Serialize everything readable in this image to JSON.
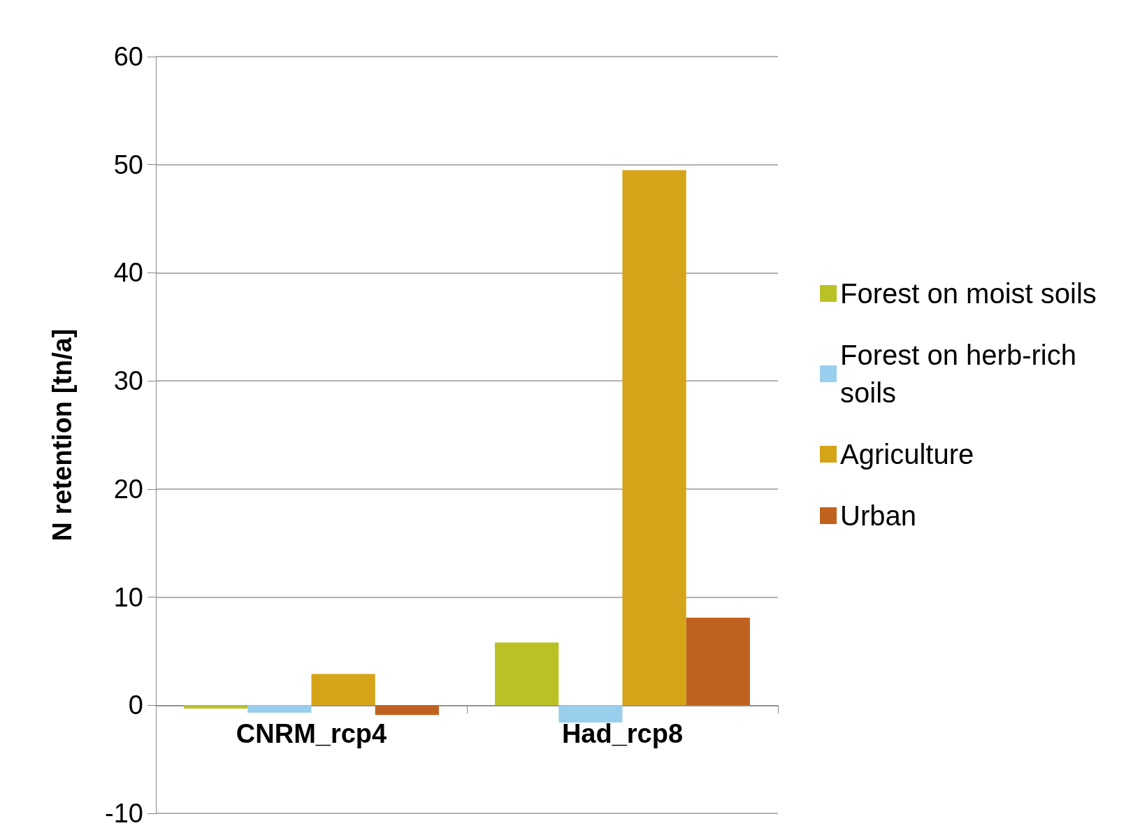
{
  "chart_data": {
    "type": "bar",
    "ylabel": "N retention [tn/a]",
    "categories": [
      "CNRM_rcp4",
      "Had_rcp8"
    ],
    "series": [
      {
        "name": "Forest on moist soils",
        "color": "#bac125",
        "values": [
          -0.3,
          5.8
        ]
      },
      {
        "name": "Forest on herb-rich soils",
        "color": "#99cfec",
        "values": [
          -0.7,
          -1.6
        ]
      },
      {
        "name": "Agriculture",
        "color": "#d5a419",
        "values": [
          2.9,
          49.5
        ]
      },
      {
        "name": "Urban",
        "color": "#c0621f",
        "values": [
          -0.9,
          8.1
        ]
      }
    ],
    "ylim": [
      -10,
      60
    ],
    "yticks": [
      -10,
      0,
      10,
      20,
      30,
      40,
      50,
      60
    ],
    "grid": "y",
    "legend": "right"
  }
}
